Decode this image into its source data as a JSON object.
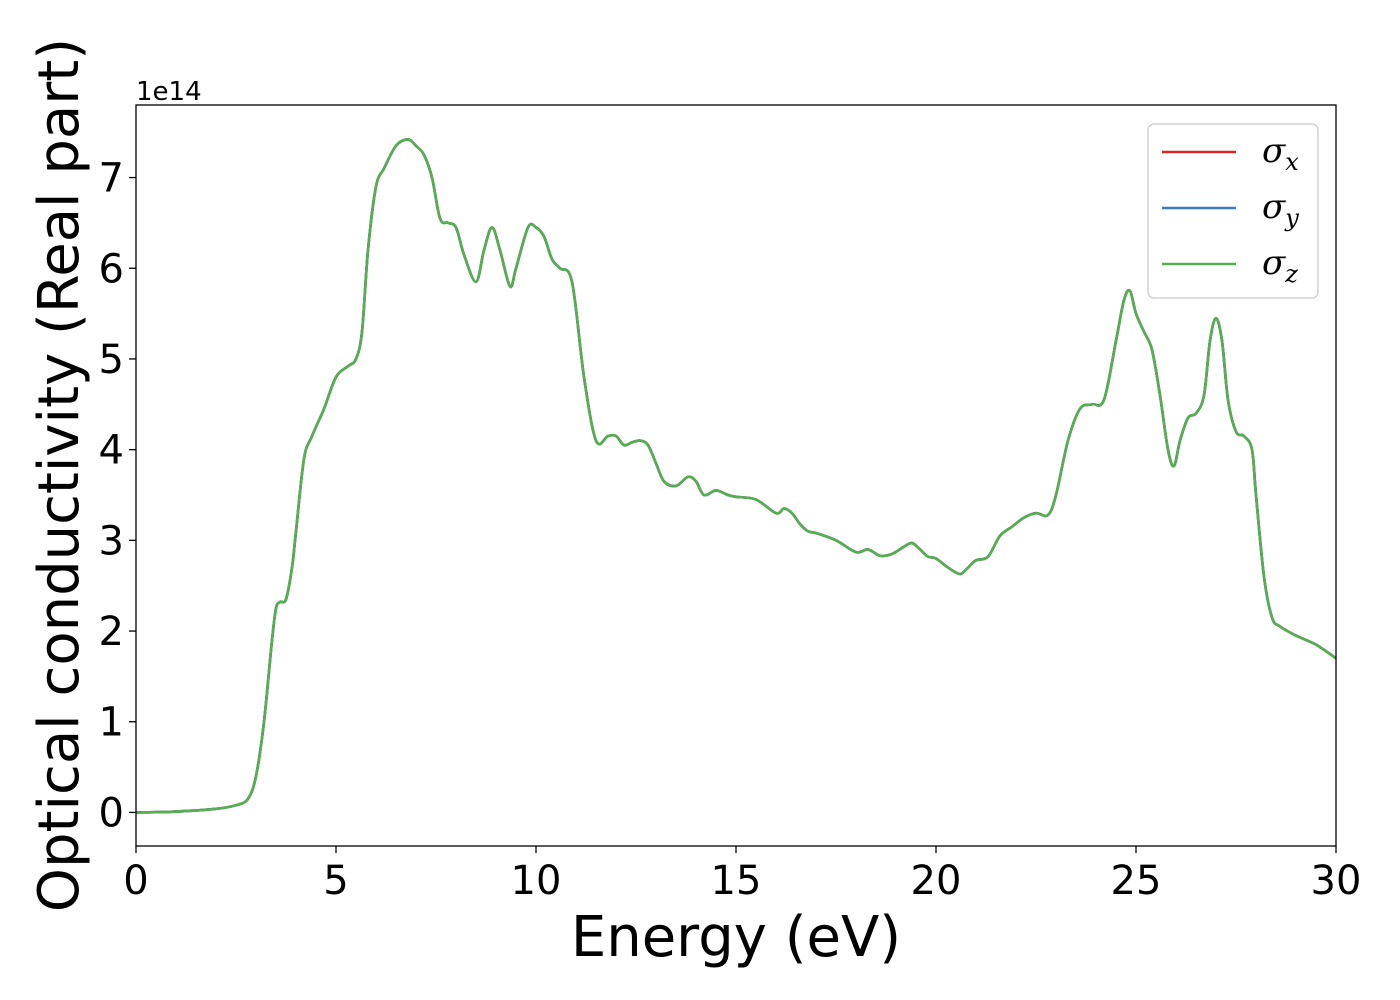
{
  "chart_data": {
    "type": "line",
    "xlabel": "Energy (eV)",
    "ylabel": "Optical conductivity (Real part)",
    "y_offset_label": "1e14",
    "xlim": [
      0,
      30
    ],
    "ylim": [
      -0.37,
      7.8
    ],
    "xticks": [
      0,
      5,
      10,
      15,
      20,
      25,
      30
    ],
    "yticks": [
      0,
      1,
      2,
      3,
      4,
      5,
      6,
      7
    ],
    "grid": false,
    "legend_position": "top-right",
    "colors": {
      "sigma_x": "#d62728",
      "sigma_y": "#1f77b4",
      "sigma_z": "#4caf50"
    },
    "series": [
      {
        "name": "σx",
        "symbol": "σ",
        "sub": "x",
        "color": "#d62728"
      },
      {
        "name": "σy",
        "symbol": "σ",
        "sub": "y",
        "color": "#3b7dbf"
      },
      {
        "name": "σz",
        "symbol": "σ",
        "sub": "z",
        "color": "#55ae4f"
      }
    ],
    "x": [
      0,
      1,
      2,
      2.5,
      2.8,
      3.0,
      3.2,
      3.4,
      3.5,
      3.6,
      3.75,
      3.9,
      4.0,
      4.2,
      4.4,
      4.7,
      5.0,
      5.3,
      5.5,
      5.65,
      5.8,
      6.0,
      6.2,
      6.5,
      6.8,
      7.0,
      7.2,
      7.4,
      7.6,
      7.8,
      8.0,
      8.2,
      8.5,
      8.7,
      8.9,
      9.1,
      9.35,
      9.5,
      9.8,
      10.0,
      10.2,
      10.4,
      10.6,
      10.9,
      11.2,
      11.5,
      11.8,
      12.0,
      12.2,
      12.4,
      12.6,
      12.8,
      13.0,
      13.2,
      13.5,
      13.8,
      14.0,
      14.2,
      14.5,
      14.8,
      15.0,
      15.5,
      16.0,
      16.2,
      16.4,
      16.6,
      16.8,
      17.0,
      17.5,
      18.0,
      18.3,
      18.6,
      18.9,
      19.2,
      19.4,
      19.6,
      19.8,
      20.0,
      20.3,
      20.6,
      20.8,
      21.0,
      21.3,
      21.6,
      21.9,
      22.2,
      22.5,
      22.8,
      23.0,
      23.3,
      23.6,
      23.9,
      24.2,
      24.5,
      24.7,
      24.85,
      25.0,
      25.2,
      25.4,
      25.6,
      25.8,
      25.95,
      26.1,
      26.3,
      26.5,
      26.7,
      26.85,
      27.0,
      27.15,
      27.3,
      27.5,
      27.7,
      27.9,
      28.0,
      28.2,
      28.4,
      28.6,
      29.0,
      29.5,
      30.0
    ],
    "values": [
      0.0,
      0.01,
      0.04,
      0.08,
      0.15,
      0.4,
      1.0,
      1.9,
      2.25,
      2.32,
      2.35,
      2.7,
      3.1,
      3.9,
      4.15,
      4.45,
      4.8,
      4.92,
      5.0,
      5.3,
      6.2,
      6.9,
      7.1,
      7.35,
      7.42,
      7.35,
      7.25,
      7.0,
      6.55,
      6.5,
      6.45,
      6.15,
      5.85,
      6.2,
      6.45,
      6.2,
      5.8,
      6.0,
      6.45,
      6.45,
      6.35,
      6.1,
      6.0,
      5.85,
      4.8,
      4.1,
      4.15,
      4.15,
      4.05,
      4.08,
      4.1,
      4.05,
      3.85,
      3.65,
      3.6,
      3.7,
      3.65,
      3.5,
      3.55,
      3.5,
      3.48,
      3.45,
      3.3,
      3.35,
      3.3,
      3.18,
      3.1,
      3.08,
      3.0,
      2.87,
      2.9,
      2.83,
      2.85,
      2.93,
      2.97,
      2.9,
      2.82,
      2.8,
      2.7,
      2.63,
      2.7,
      2.78,
      2.82,
      3.05,
      3.15,
      3.25,
      3.3,
      3.28,
      3.5,
      4.1,
      4.45,
      4.5,
      4.55,
      5.2,
      5.65,
      5.75,
      5.5,
      5.3,
      5.1,
      4.6,
      4.0,
      3.82,
      4.1,
      4.35,
      4.4,
      4.6,
      5.2,
      5.45,
      5.2,
      4.55,
      4.2,
      4.15,
      4.0,
      3.5,
      2.6,
      2.15,
      2.05,
      1.95,
      1.85,
      1.7
    ]
  }
}
